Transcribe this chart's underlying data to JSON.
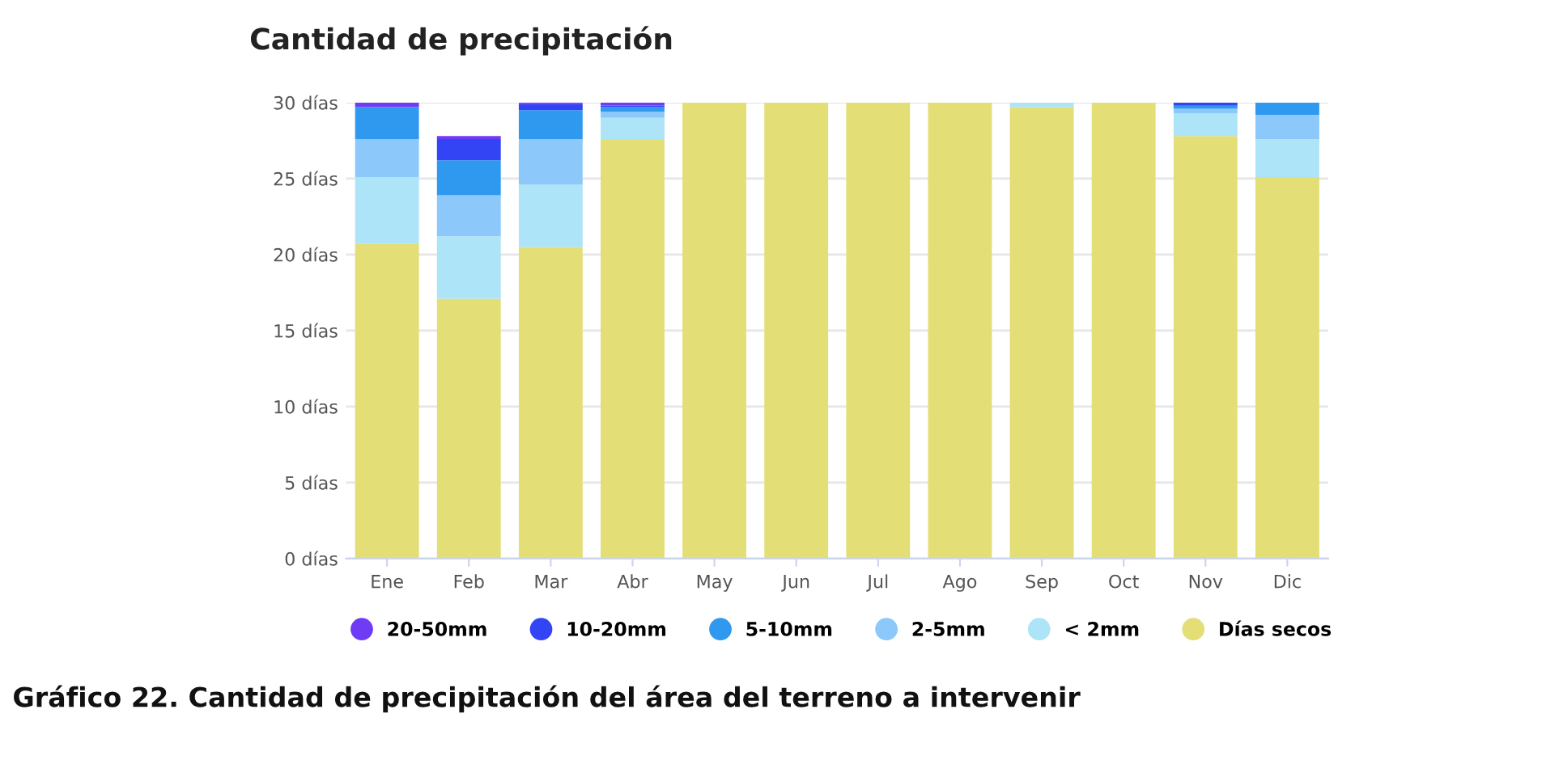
{
  "chart_data": {
    "type": "bar",
    "title": "Cantidad de precipitación",
    "stacked": true,
    "categories": [
      "Ene",
      "Feb",
      "Mar",
      "Abr",
      "May",
      "Jun",
      "Jul",
      "Ago",
      "Sep",
      "Oct",
      "Nov",
      "Dic"
    ],
    "series": [
      {
        "name": "Días secos",
        "color": "#e3de75",
        "values": [
          20.7,
          17.1,
          20.5,
          27.6,
          30,
          30,
          30,
          30,
          29.7,
          30,
          27.8,
          25.1
        ]
      },
      {
        "name": "< 2mm",
        "color": "#ade4f7",
        "values": [
          4.4,
          4.1,
          4.1,
          1.4,
          null,
          null,
          null,
          null,
          0.3,
          null,
          1.5,
          2.5
        ]
      },
      {
        "name": "2-5mm",
        "color": "#8cc8fa",
        "values": [
          2.5,
          2.7,
          3.0,
          0.4,
          null,
          null,
          null,
          null,
          null,
          null,
          0.3,
          1.6
        ]
      },
      {
        "name": "5-10mm",
        "color": "#2f99ef",
        "values": [
          2.1,
          2.3,
          1.9,
          0.3,
          null,
          null,
          null,
          null,
          null,
          null,
          0.2,
          0.8
        ]
      },
      {
        "name": "10-20mm",
        "color": "#3344f5",
        "values": [
          null,
          1.4,
          0.4,
          0.1,
          null,
          null,
          null,
          null,
          null,
          null,
          0.2,
          null
        ]
      },
      {
        "name": "20-50mm",
        "color": "#6f3cf5",
        "values": [
          0.3,
          0.2,
          0.1,
          0.2,
          null,
          null,
          null,
          null,
          null,
          null,
          null,
          null
        ]
      }
    ],
    "ylim": [
      0,
      30
    ],
    "yticks": [
      {
        "value": 0,
        "label": "0 días"
      },
      {
        "value": 5,
        "label": "5 días"
      },
      {
        "value": 10,
        "label": "10 días"
      },
      {
        "value": 15,
        "label": "15 días"
      },
      {
        "value": 20,
        "label": "20 días"
      },
      {
        "value": 25,
        "label": "25 días"
      },
      {
        "value": 30,
        "label": "30 días"
      }
    ],
    "grid": "y",
    "legend": "bottom",
    "marker": "circle",
    "annotations": [
      "Gráfico 22. Cantidad de precipitación del área del terreno a intervenir"
    ]
  }
}
